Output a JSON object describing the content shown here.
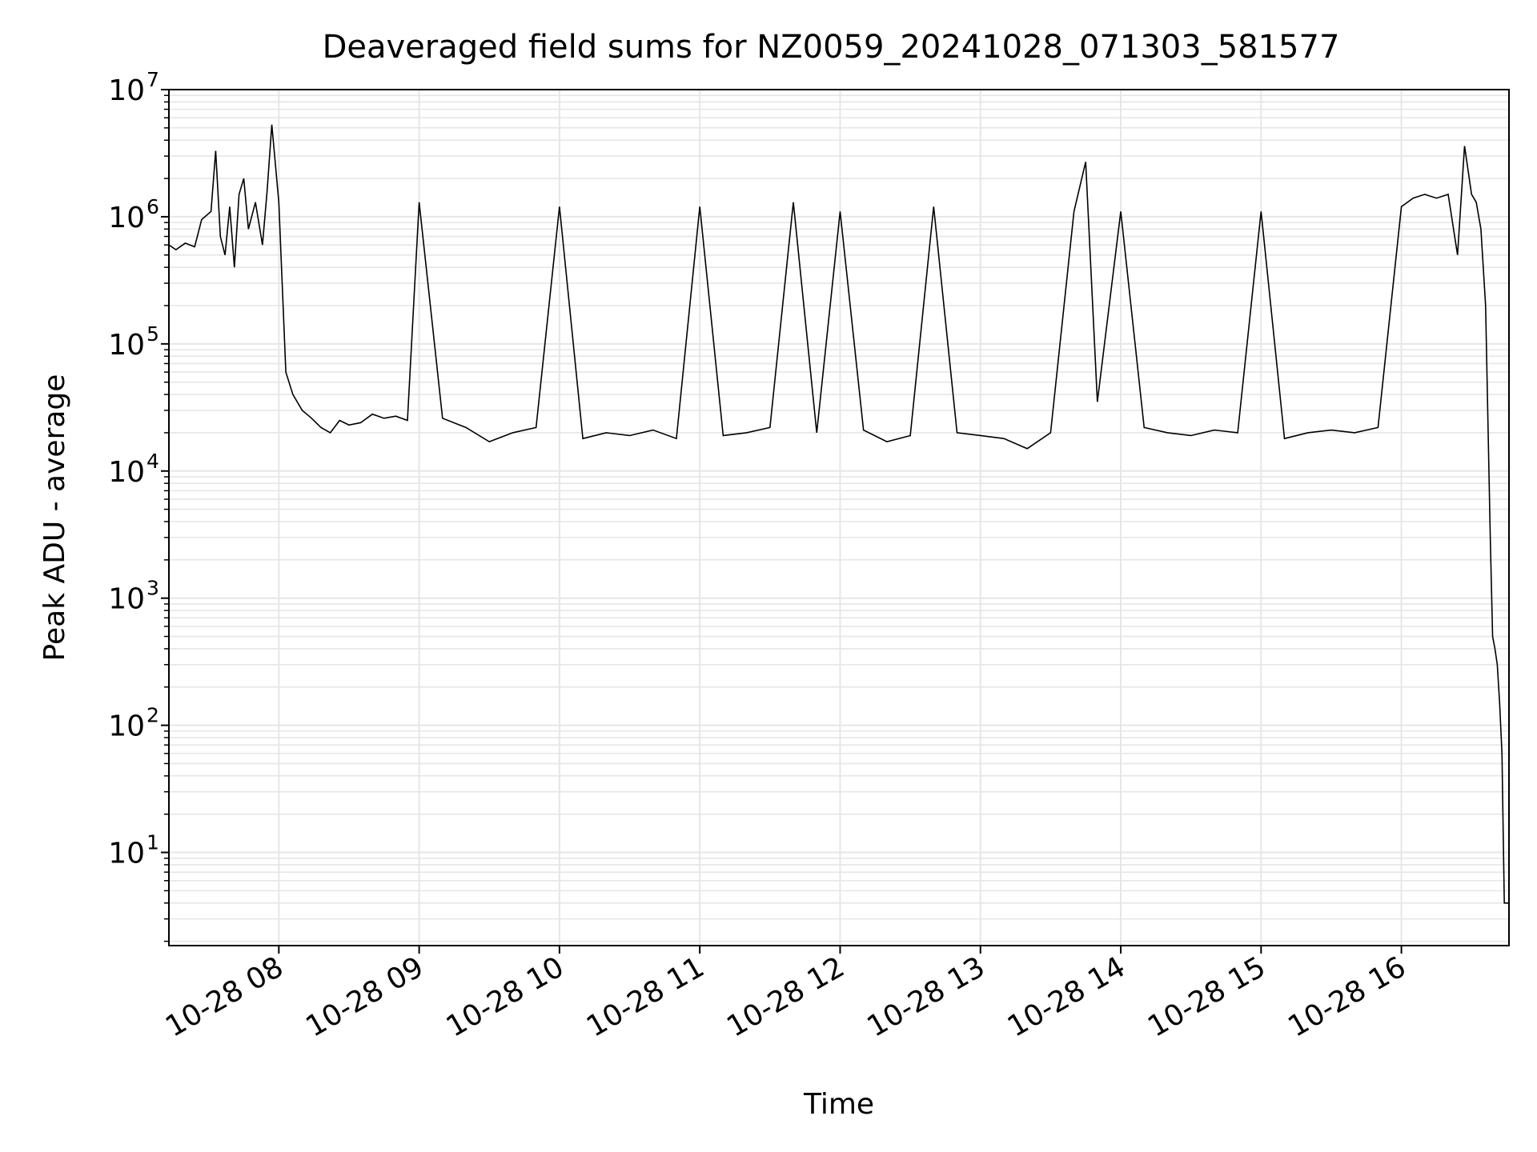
{
  "chart_data": {
    "type": "line",
    "title": "Deaveraged field sums for NZ0059_20241028_071303_581577",
    "xlabel": "Time",
    "ylabel": "Peak ADU - average",
    "y_scale": "log",
    "ylim": [
      1.85,
      10000000
    ],
    "xlim": [
      "2024-10-28 07:13",
      "2024-10-28 16:46"
    ],
    "grid": true,
    "legend": "none",
    "x_tick_labels": [
      "10-28 08",
      "10-28 09",
      "10-28 10",
      "10-28 11",
      "10-28 12",
      "10-28 13",
      "10-28 14",
      "10-28 15",
      "10-28 16"
    ],
    "y_tick_labels": [
      {
        "base": "10",
        "exp": "1"
      },
      {
        "base": "10",
        "exp": "2"
      },
      {
        "base": "10",
        "exp": "3"
      },
      {
        "base": "10",
        "exp": "4"
      },
      {
        "base": "10",
        "exp": "5"
      },
      {
        "base": "10",
        "exp": "6"
      },
      {
        "base": "10",
        "exp": "7"
      }
    ],
    "series": [
      {
        "color": "#000000",
        "note_points_are_approximate_read_from_envelope": false,
        "x": [
          "2024-10-28 07:13",
          "2024-10-28 07:16",
          "2024-10-28 07:20",
          "2024-10-28 07:24",
          "2024-10-28 07:27",
          "2024-10-28 07:31",
          "2024-10-28 07:33",
          "2024-10-28 07:35",
          "2024-10-28 07:37",
          "2024-10-28 07:39",
          "2024-10-28 07:41",
          "2024-10-28 07:43",
          "2024-10-28 07:45",
          "2024-10-28 07:47",
          "2024-10-28 07:50",
          "2024-10-28 07:53",
          "2024-10-28 07:55",
          "2024-10-28 07:57",
          "2024-10-28 08:00",
          "2024-10-28 08:03",
          "2024-10-28 08:06",
          "2024-10-28 08:10",
          "2024-10-28 08:14",
          "2024-10-28 08:18",
          "2024-10-28 08:22",
          "2024-10-28 08:26",
          "2024-10-28 08:30",
          "2024-10-28 08:35",
          "2024-10-28 08:40",
          "2024-10-28 08:45",
          "2024-10-28 08:50",
          "2024-10-28 08:55",
          "2024-10-28 09:00",
          "2024-10-28 09:10",
          "2024-10-28 09:20",
          "2024-10-28 09:30",
          "2024-10-28 09:40",
          "2024-10-28 09:50",
          "2024-10-28 10:00",
          "2024-10-28 10:10",
          "2024-10-28 10:20",
          "2024-10-28 10:30",
          "2024-10-28 10:40",
          "2024-10-28 10:50",
          "2024-10-28 11:00",
          "2024-10-28 11:10",
          "2024-10-28 11:20",
          "2024-10-28 11:30",
          "2024-10-28 11:40",
          "2024-10-28 11:50",
          "2024-10-28 12:00",
          "2024-10-28 12:10",
          "2024-10-28 12:20",
          "2024-10-28 12:30",
          "2024-10-28 12:40",
          "2024-10-28 12:50",
          "2024-10-28 13:00",
          "2024-10-28 13:10",
          "2024-10-28 13:20",
          "2024-10-28 13:30",
          "2024-10-28 13:40",
          "2024-10-28 13:45",
          "2024-10-28 13:50",
          "2024-10-28 14:00",
          "2024-10-28 14:10",
          "2024-10-28 14:20",
          "2024-10-28 14:30",
          "2024-10-28 14:40",
          "2024-10-28 14:50",
          "2024-10-28 15:00",
          "2024-10-28 15:10",
          "2024-10-28 15:20",
          "2024-10-28 15:30",
          "2024-10-28 15:40",
          "2024-10-28 15:50",
          "2024-10-28 16:00",
          "2024-10-28 16:05",
          "2024-10-28 16:10",
          "2024-10-28 16:15",
          "2024-10-28 16:20",
          "2024-10-28 16:24",
          "2024-10-28 16:27",
          "2024-10-28 16:30",
          "2024-10-28 16:32",
          "2024-10-28 16:34",
          "2024-10-28 16:36",
          "2024-10-28 16:38",
          "2024-10-28 16:39",
          "2024-10-28 16:40",
          "2024-10-28 16:41",
          "2024-10-28 16:42",
          "2024-10-28 16:43",
          "2024-10-28 16:44",
          "2024-10-28 16:45",
          "2024-10-28 16:46"
        ],
        "y": [
          600000,
          550000,
          620000,
          580000,
          950000,
          1100000,
          3300000,
          700000,
          500000,
          1200000,
          400000,
          1500000,
          2000000,
          800000,
          1300000,
          600000,
          1600000,
          5300000,
          1300000,
          60000,
          40000,
          30000,
          26000,
          22000,
          20000,
          25000,
          23000,
          24000,
          28000,
          26000,
          27000,
          25000,
          1300000,
          26000,
          22000,
          17000,
          20000,
          22000,
          1200000,
          18000,
          20000,
          19000,
          21000,
          18000,
          1200000,
          19000,
          20000,
          22000,
          1300000,
          20000,
          1100000,
          21000,
          17000,
          19000,
          1200000,
          20000,
          19000,
          18000,
          15000,
          20000,
          1100000,
          2700000,
          35000,
          1100000,
          22000,
          20000,
          19000,
          21000,
          20000,
          1100000,
          18000,
          20000,
          21000,
          20000,
          22000,
          1200000,
          1400000,
          1500000,
          1400000,
          1500000,
          500000,
          3600000,
          1500000,
          1300000,
          800000,
          200000,
          3000,
          500,
          400,
          300,
          150,
          60,
          4,
          4,
          4
        ]
      }
    ]
  }
}
